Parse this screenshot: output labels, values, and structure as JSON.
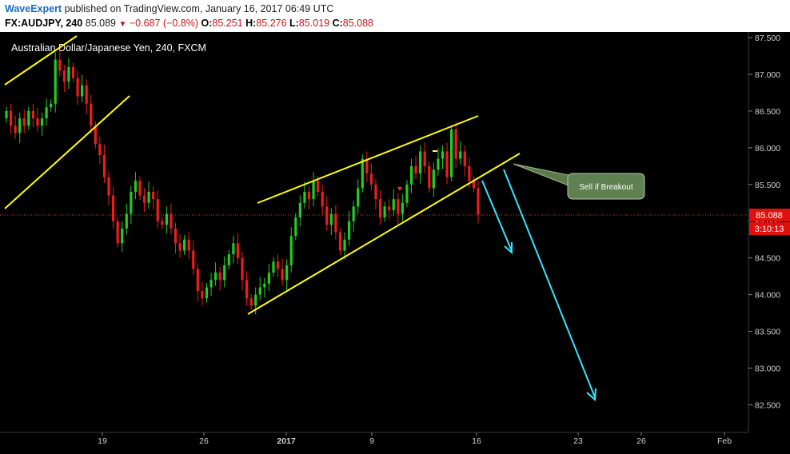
{
  "header": {
    "publisher": "WaveExpert",
    "published_text": "published on TradingView.com, January 16, 2017 06:49 UTC",
    "symbol": "FX:AUDJPY, 240",
    "last": "85.089",
    "change": "−0.687 (−0.8%)",
    "o_label": "O:",
    "o_value": "85.251",
    "h_label": "H:",
    "h_value": "85.276",
    "l_label": "L:",
    "l_value": "85.019",
    "c_label": "C:",
    "c_value": "85.088"
  },
  "chart_data": {
    "type": "candlestick",
    "title": "Australian Dollar/Japanese Yen, 240, FXCM",
    "y_ticks": [
      "87.500",
      "87.000",
      "86.500",
      "86.000",
      "85.500",
      "85.000",
      "84.500",
      "84.000",
      "83.500",
      "83.000",
      "82.500"
    ],
    "ylim": [
      82.0,
      87.6
    ],
    "x_ticks": [
      "19",
      "26",
      "2017",
      "9",
      "16",
      "23",
      "26",
      "Feb"
    ],
    "current_price_label": "85.088",
    "countdown_label": "3:10:13",
    "annotation": "Sell if Breakout",
    "candles_open_close": [
      [
        86.4,
        86.5
      ],
      [
        86.5,
        86.3
      ],
      [
        86.3,
        86.2
      ],
      [
        86.2,
        86.4
      ],
      [
        86.4,
        86.3
      ],
      [
        86.3,
        86.5
      ],
      [
        86.5,
        86.4
      ],
      [
        86.4,
        86.3
      ],
      [
        86.3,
        86.4
      ],
      [
        86.4,
        86.55
      ],
      [
        86.55,
        86.6
      ],
      [
        86.6,
        87.2
      ],
      [
        87.2,
        87.05
      ],
      [
        87.05,
        86.9
      ],
      [
        86.9,
        87.1
      ],
      [
        87.1,
        86.95
      ],
      [
        86.95,
        86.7
      ],
      [
        86.7,
        86.85
      ],
      [
        86.85,
        86.6
      ],
      [
        86.6,
        86.3
      ],
      [
        86.3,
        86.05
      ],
      [
        86.05,
        85.9
      ],
      [
        85.9,
        85.6
      ],
      [
        85.6,
        85.35
      ],
      [
        85.35,
        85.0
      ],
      [
        85.0,
        84.7
      ],
      [
        84.7,
        84.9
      ],
      [
        84.9,
        85.1
      ],
      [
        85.1,
        85.4
      ],
      [
        85.4,
        85.55
      ],
      [
        85.55,
        85.35
      ],
      [
        85.35,
        85.25
      ],
      [
        85.25,
        85.4
      ],
      [
        85.4,
        85.3
      ],
      [
        85.3,
        85.0
      ],
      [
        85.0,
        84.95
      ],
      [
        84.95,
        85.1
      ],
      [
        85.1,
        84.9
      ],
      [
        84.9,
        84.7
      ],
      [
        84.7,
        84.6
      ],
      [
        84.6,
        84.75
      ],
      [
        84.75,
        84.6
      ],
      [
        84.6,
        84.35
      ],
      [
        84.35,
        84.05
      ],
      [
        84.05,
        83.95
      ],
      [
        83.95,
        84.1
      ],
      [
        84.1,
        84.2
      ],
      [
        84.2,
        84.3
      ],
      [
        84.3,
        84.2
      ],
      [
        84.2,
        84.4
      ],
      [
        84.4,
        84.55
      ],
      [
        84.55,
        84.7
      ],
      [
        84.7,
        84.5
      ],
      [
        84.5,
        84.2
      ],
      [
        84.2,
        83.95
      ],
      [
        83.95,
        83.85
      ],
      [
        83.85,
        84.0
      ],
      [
        84.0,
        84.1
      ],
      [
        84.1,
        84.15
      ],
      [
        84.15,
        84.3
      ],
      [
        84.3,
        84.45
      ],
      [
        84.45,
        84.35
      ],
      [
        84.35,
        84.2
      ],
      [
        84.2,
        84.4
      ],
      [
        84.4,
        84.8
      ],
      [
        84.8,
        85.05
      ],
      [
        85.05,
        85.25
      ],
      [
        85.25,
        85.4
      ],
      [
        85.4,
        85.3
      ],
      [
        85.3,
        85.55
      ],
      [
        85.55,
        85.4
      ],
      [
        85.4,
        85.2
      ],
      [
        85.2,
        84.95
      ],
      [
        84.95,
        85.1
      ],
      [
        85.1,
        84.85
      ],
      [
        84.85,
        84.6
      ],
      [
        84.6,
        84.75
      ],
      [
        84.75,
        85.0
      ],
      [
        85.0,
        85.2
      ],
      [
        85.2,
        85.45
      ],
      [
        85.45,
        85.85
      ],
      [
        85.85,
        85.65
      ],
      [
        85.65,
        85.5
      ],
      [
        85.5,
        85.3
      ],
      [
        85.3,
        85.05
      ],
      [
        85.05,
        85.2
      ],
      [
        85.2,
        85.15
      ],
      [
        85.15,
        85.3
      ],
      [
        85.3,
        85.1
      ],
      [
        85.1,
        85.25
      ],
      [
        85.25,
        85.5
      ],
      [
        85.5,
        85.75
      ],
      [
        85.75,
        85.65
      ],
      [
        85.65,
        85.95
      ],
      [
        85.95,
        85.75
      ],
      [
        85.75,
        85.45
      ],
      [
        85.45,
        85.7
      ],
      [
        85.7,
        85.85
      ],
      [
        85.85,
        85.95
      ],
      [
        85.95,
        85.6
      ],
      [
        85.6,
        86.25
      ],
      [
        86.25,
        85.85
      ],
      [
        85.85,
        85.95
      ],
      [
        85.95,
        85.75
      ],
      [
        85.75,
        85.55
      ],
      [
        85.55,
        85.45
      ],
      [
        85.45,
        85.09
      ]
    ]
  }
}
